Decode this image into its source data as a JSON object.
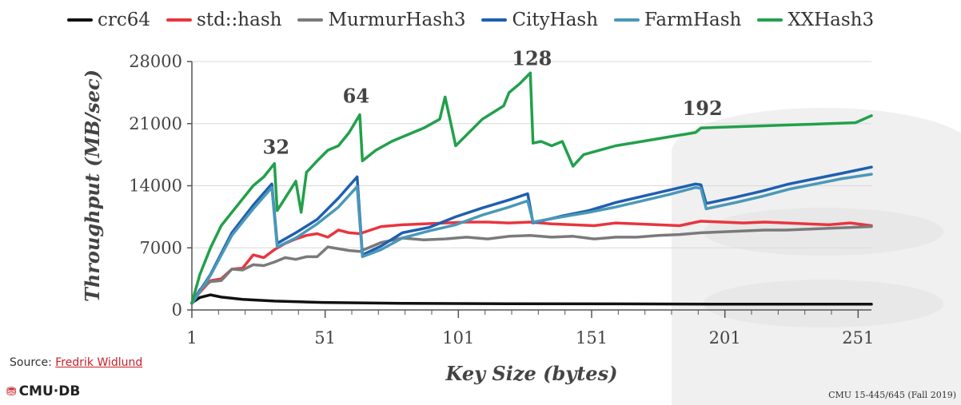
{
  "chart_data": {
    "type": "line",
    "xlabel": "Key Size (bytes)",
    "ylabel": "Throughput (MB/sec)",
    "xlim": [
      1,
      256
    ],
    "ylim": [
      0,
      28000
    ],
    "xticks": [
      1,
      51,
      101,
      151,
      201,
      251
    ],
    "yticks": [
      0,
      7000,
      14000,
      21000,
      28000
    ],
    "legend_position": "top",
    "annotations": [
      {
        "text": "32",
        "x": 32,
        "y": 16500
      },
      {
        "text": "64",
        "x": 62,
        "y": 22300
      },
      {
        "text": "128",
        "x": 128,
        "y": 26500
      },
      {
        "text": "192",
        "x": 192,
        "y": 20900
      }
    ],
    "series": [
      {
        "name": "crc64",
        "color": "#111111",
        "x": [
          1,
          4,
          8,
          12,
          20,
          32,
          50,
          80,
          120,
          160,
          200,
          256
        ],
        "y": [
          800,
          1400,
          1700,
          1450,
          1200,
          1000,
          850,
          750,
          700,
          680,
          650,
          650
        ]
      },
      {
        "name": "std::hash",
        "color": "#e8353f",
        "x": [
          1,
          4,
          8,
          12,
          16,
          20,
          24,
          28,
          32,
          36,
          40,
          44,
          48,
          52,
          56,
          60,
          64,
          72,
          80,
          88,
          96,
          104,
          112,
          120,
          128,
          136,
          144,
          152,
          160,
          168,
          176,
          184,
          192,
          200,
          208,
          216,
          224,
          232,
          240,
          248,
          256
        ],
        "y": [
          800,
          2000,
          3300,
          3500,
          4600,
          4700,
          6200,
          5900,
          6800,
          7500,
          8000,
          8400,
          8600,
          8200,
          9000,
          8700,
          8600,
          9400,
          9600,
          9700,
          9800,
          9900,
          9900,
          9800,
          9900,
          9700,
          9600,
          9500,
          9800,
          9700,
          9600,
          9500,
          10000,
          9900,
          9800,
          9900,
          9800,
          9700,
          9600,
          9800,
          9500
        ]
      },
      {
        "name": "MurmurHash3",
        "color": "#7a7a7a",
        "x": [
          1,
          4,
          8,
          12,
          16,
          20,
          24,
          28,
          32,
          36,
          40,
          44,
          48,
          52,
          56,
          60,
          64,
          72,
          80,
          88,
          96,
          104,
          112,
          120,
          128,
          136,
          144,
          152,
          160,
          168,
          176,
          184,
          192,
          200,
          208,
          216,
          224,
          232,
          240,
          248,
          256
        ],
        "y": [
          700,
          2300,
          3200,
          3300,
          4600,
          4500,
          5100,
          5000,
          5400,
          5900,
          5700,
          6000,
          6000,
          7100,
          6900,
          6700,
          6600,
          7600,
          8100,
          7900,
          8000,
          8200,
          8000,
          8300,
          8400,
          8200,
          8300,
          8000,
          8200,
          8200,
          8400,
          8500,
          8700,
          8800,
          8900,
          9000,
          9000,
          9100,
          9200,
          9300,
          9400
        ]
      },
      {
        "name": "CityHash",
        "color": "#1f5fb0",
        "x": [
          1,
          8,
          16,
          24,
          31,
          33,
          40,
          48,
          56,
          63,
          65,
          72,
          80,
          90,
          100,
          110,
          120,
          127,
          129,
          140,
          150,
          160,
          170,
          180,
          190,
          192,
          194,
          205,
          215,
          225,
          235,
          245,
          256
        ],
        "y": [
          800,
          4000,
          8700,
          11800,
          14200,
          7500,
          8700,
          10200,
          12600,
          15000,
          6200,
          7200,
          8700,
          9300,
          10500,
          11500,
          12400,
          13100,
          9800,
          10600,
          11200,
          12100,
          12800,
          13500,
          14200,
          14100,
          12000,
          12700,
          13400,
          14200,
          14800,
          15400,
          16100
        ]
      },
      {
        "name": "FarmHash",
        "color": "#4a98b8",
        "x": [
          1,
          8,
          16,
          24,
          31,
          33,
          40,
          48,
          56,
          63,
          65,
          72,
          80,
          90,
          100,
          110,
          120,
          127,
          129,
          140,
          150,
          160,
          170,
          180,
          190,
          192,
          194,
          205,
          215,
          225,
          235,
          245,
          256
        ],
        "y": [
          700,
          3900,
          8400,
          11400,
          13800,
          7100,
          8100,
          9700,
          11600,
          13900,
          6000,
          6800,
          8100,
          8900,
          9600,
          10700,
          11600,
          12300,
          9900,
          10500,
          11000,
          11600,
          12300,
          13000,
          13800,
          13700,
          11400,
          12100,
          12800,
          13600,
          14200,
          14800,
          15300
        ]
      },
      {
        "name": "XXHash3",
        "color": "#22a04b",
        "x": [
          1,
          4,
          8,
          12,
          16,
          20,
          24,
          28,
          32,
          33,
          40,
          42,
          44,
          48,
          52,
          56,
          60,
          64,
          65,
          70,
          76,
          80,
          88,
          94,
          96,
          100,
          110,
          118,
          120,
          124,
          128,
          129,
          132,
          136,
          140,
          144,
          148,
          160,
          170,
          180,
          190,
          192,
          200,
          210,
          220,
          230,
          240,
          250,
          256
        ],
        "y": [
          800,
          4000,
          7000,
          9500,
          11000,
          12500,
          14000,
          15000,
          16500,
          11200,
          14500,
          11000,
          15500,
          16800,
          18000,
          18500,
          20000,
          22000,
          16800,
          18000,
          19000,
          19500,
          20500,
          21500,
          24000,
          18500,
          21500,
          23000,
          24500,
          25500,
          26700,
          18800,
          19000,
          18500,
          19000,
          16200,
          17500,
          18500,
          19000,
          19500,
          20000,
          20500,
          20600,
          20700,
          20800,
          20900,
          21000,
          21100,
          21900
        ]
      }
    ]
  },
  "source": {
    "label": "Source: ",
    "link_text": "Fredrik Widlund"
  },
  "logo": {
    "text": "CMU·DB"
  },
  "footer": {
    "course": "CMU 15-445/645 (Fall 2019)"
  }
}
